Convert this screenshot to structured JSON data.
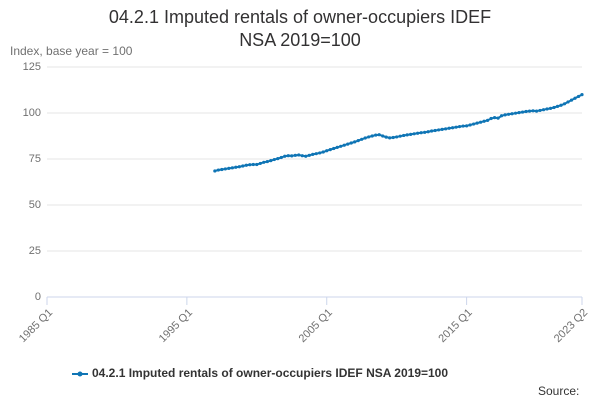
{
  "chart_data": {
    "type": "line",
    "title": "04.2.1 Imputed rentals of owner-occupiers IDEF NSA 2019=100",
    "y_label": "Index, base year = 100",
    "source": "Source:",
    "categories": [
      "1985 Q1",
      null,
      null,
      null,
      null,
      null,
      null,
      null,
      null,
      null,
      null,
      null,
      null,
      null,
      null,
      null,
      null,
      null,
      null,
      null,
      null,
      null,
      null,
      null,
      null,
      null,
      null,
      null,
      null,
      null,
      null,
      null,
      null,
      null,
      null,
      null,
      null,
      null,
      null,
      null,
      "1995 Q1",
      null,
      null,
      null,
      null,
      null,
      null,
      null,
      null,
      null,
      null,
      null,
      null,
      null,
      null,
      null,
      null,
      null,
      null,
      null,
      null,
      null,
      null,
      null,
      null,
      null,
      null,
      null,
      null,
      null,
      null,
      null,
      null,
      null,
      null,
      null,
      null,
      null,
      null,
      null,
      "2005 Q1",
      null,
      null,
      null,
      null,
      null,
      null,
      null,
      null,
      null,
      null,
      null,
      null,
      null,
      null,
      null,
      null,
      null,
      null,
      null,
      null,
      null,
      null,
      null,
      null,
      null,
      null,
      null,
      null,
      null,
      null,
      null,
      null,
      null,
      null,
      null,
      null,
      null,
      null,
      null,
      "2015 Q1",
      null,
      null,
      null,
      null,
      null,
      null,
      null,
      null,
      null,
      null,
      null,
      null,
      null,
      null,
      null,
      null,
      null,
      null,
      null,
      null,
      null,
      null,
      null,
      null,
      null,
      null,
      null,
      null,
      null,
      null,
      null,
      null,
      "2023 Q2"
    ],
    "series": [
      {
        "name": "04.2.1 Imputed rentals of owner-occupiers IDEF NSA 2019=100",
        "color": "#0f75b5",
        "values": [
          null,
          null,
          null,
          null,
          null,
          null,
          null,
          null,
          null,
          null,
          null,
          null,
          null,
          null,
          null,
          null,
          null,
          null,
          null,
          null,
          null,
          null,
          null,
          null,
          null,
          null,
          null,
          null,
          null,
          null,
          null,
          null,
          null,
          null,
          null,
          null,
          null,
          null,
          null,
          null,
          null,
          null,
          null,
          null,
          null,
          null,
          null,
          null,
          68.5,
          69.0,
          69.3,
          69.6,
          69.9,
          70.2,
          70.5,
          70.8,
          71.2,
          71.6,
          71.9,
          72.0,
          72.0,
          72.6,
          73.2,
          73.6,
          74.1,
          74.7,
          75.2,
          75.8,
          76.5,
          76.8,
          76.7,
          77.0,
          77.2,
          76.8,
          76.5,
          77.0,
          77.5,
          77.9,
          78.3,
          78.8,
          79.5,
          80.1,
          80.7,
          81.3,
          81.9,
          82.5,
          83.1,
          83.7,
          84.3,
          85.0,
          85.7,
          86.4,
          87.0,
          87.5,
          88.0,
          88.2,
          87.5,
          86.9,
          86.5,
          86.7,
          87.0,
          87.4,
          87.8,
          88.1,
          88.4,
          88.7,
          89.0,
          89.3,
          89.5,
          89.8,
          90.2,
          90.5,
          90.8,
          91.1,
          91.4,
          91.7,
          92.0,
          92.3,
          92.6,
          92.9,
          93.0,
          93.5,
          94.0,
          94.5,
          95.0,
          95.5,
          96.0,
          97.0,
          97.5,
          97.2,
          98.5,
          99.0,
          99.3,
          99.6,
          99.9,
          100.2,
          100.5,
          100.8,
          101.0,
          101.2,
          101.0,
          101.4,
          101.8,
          102.2,
          102.5,
          103.0,
          103.6,
          104.2,
          105.0,
          106.0,
          107.0,
          108.0,
          109.0,
          110.0
        ]
      }
    ],
    "ylim": [
      0,
      125
    ],
    "yticks": [
      0,
      25,
      50,
      75,
      100,
      125
    ],
    "grid": true
  }
}
